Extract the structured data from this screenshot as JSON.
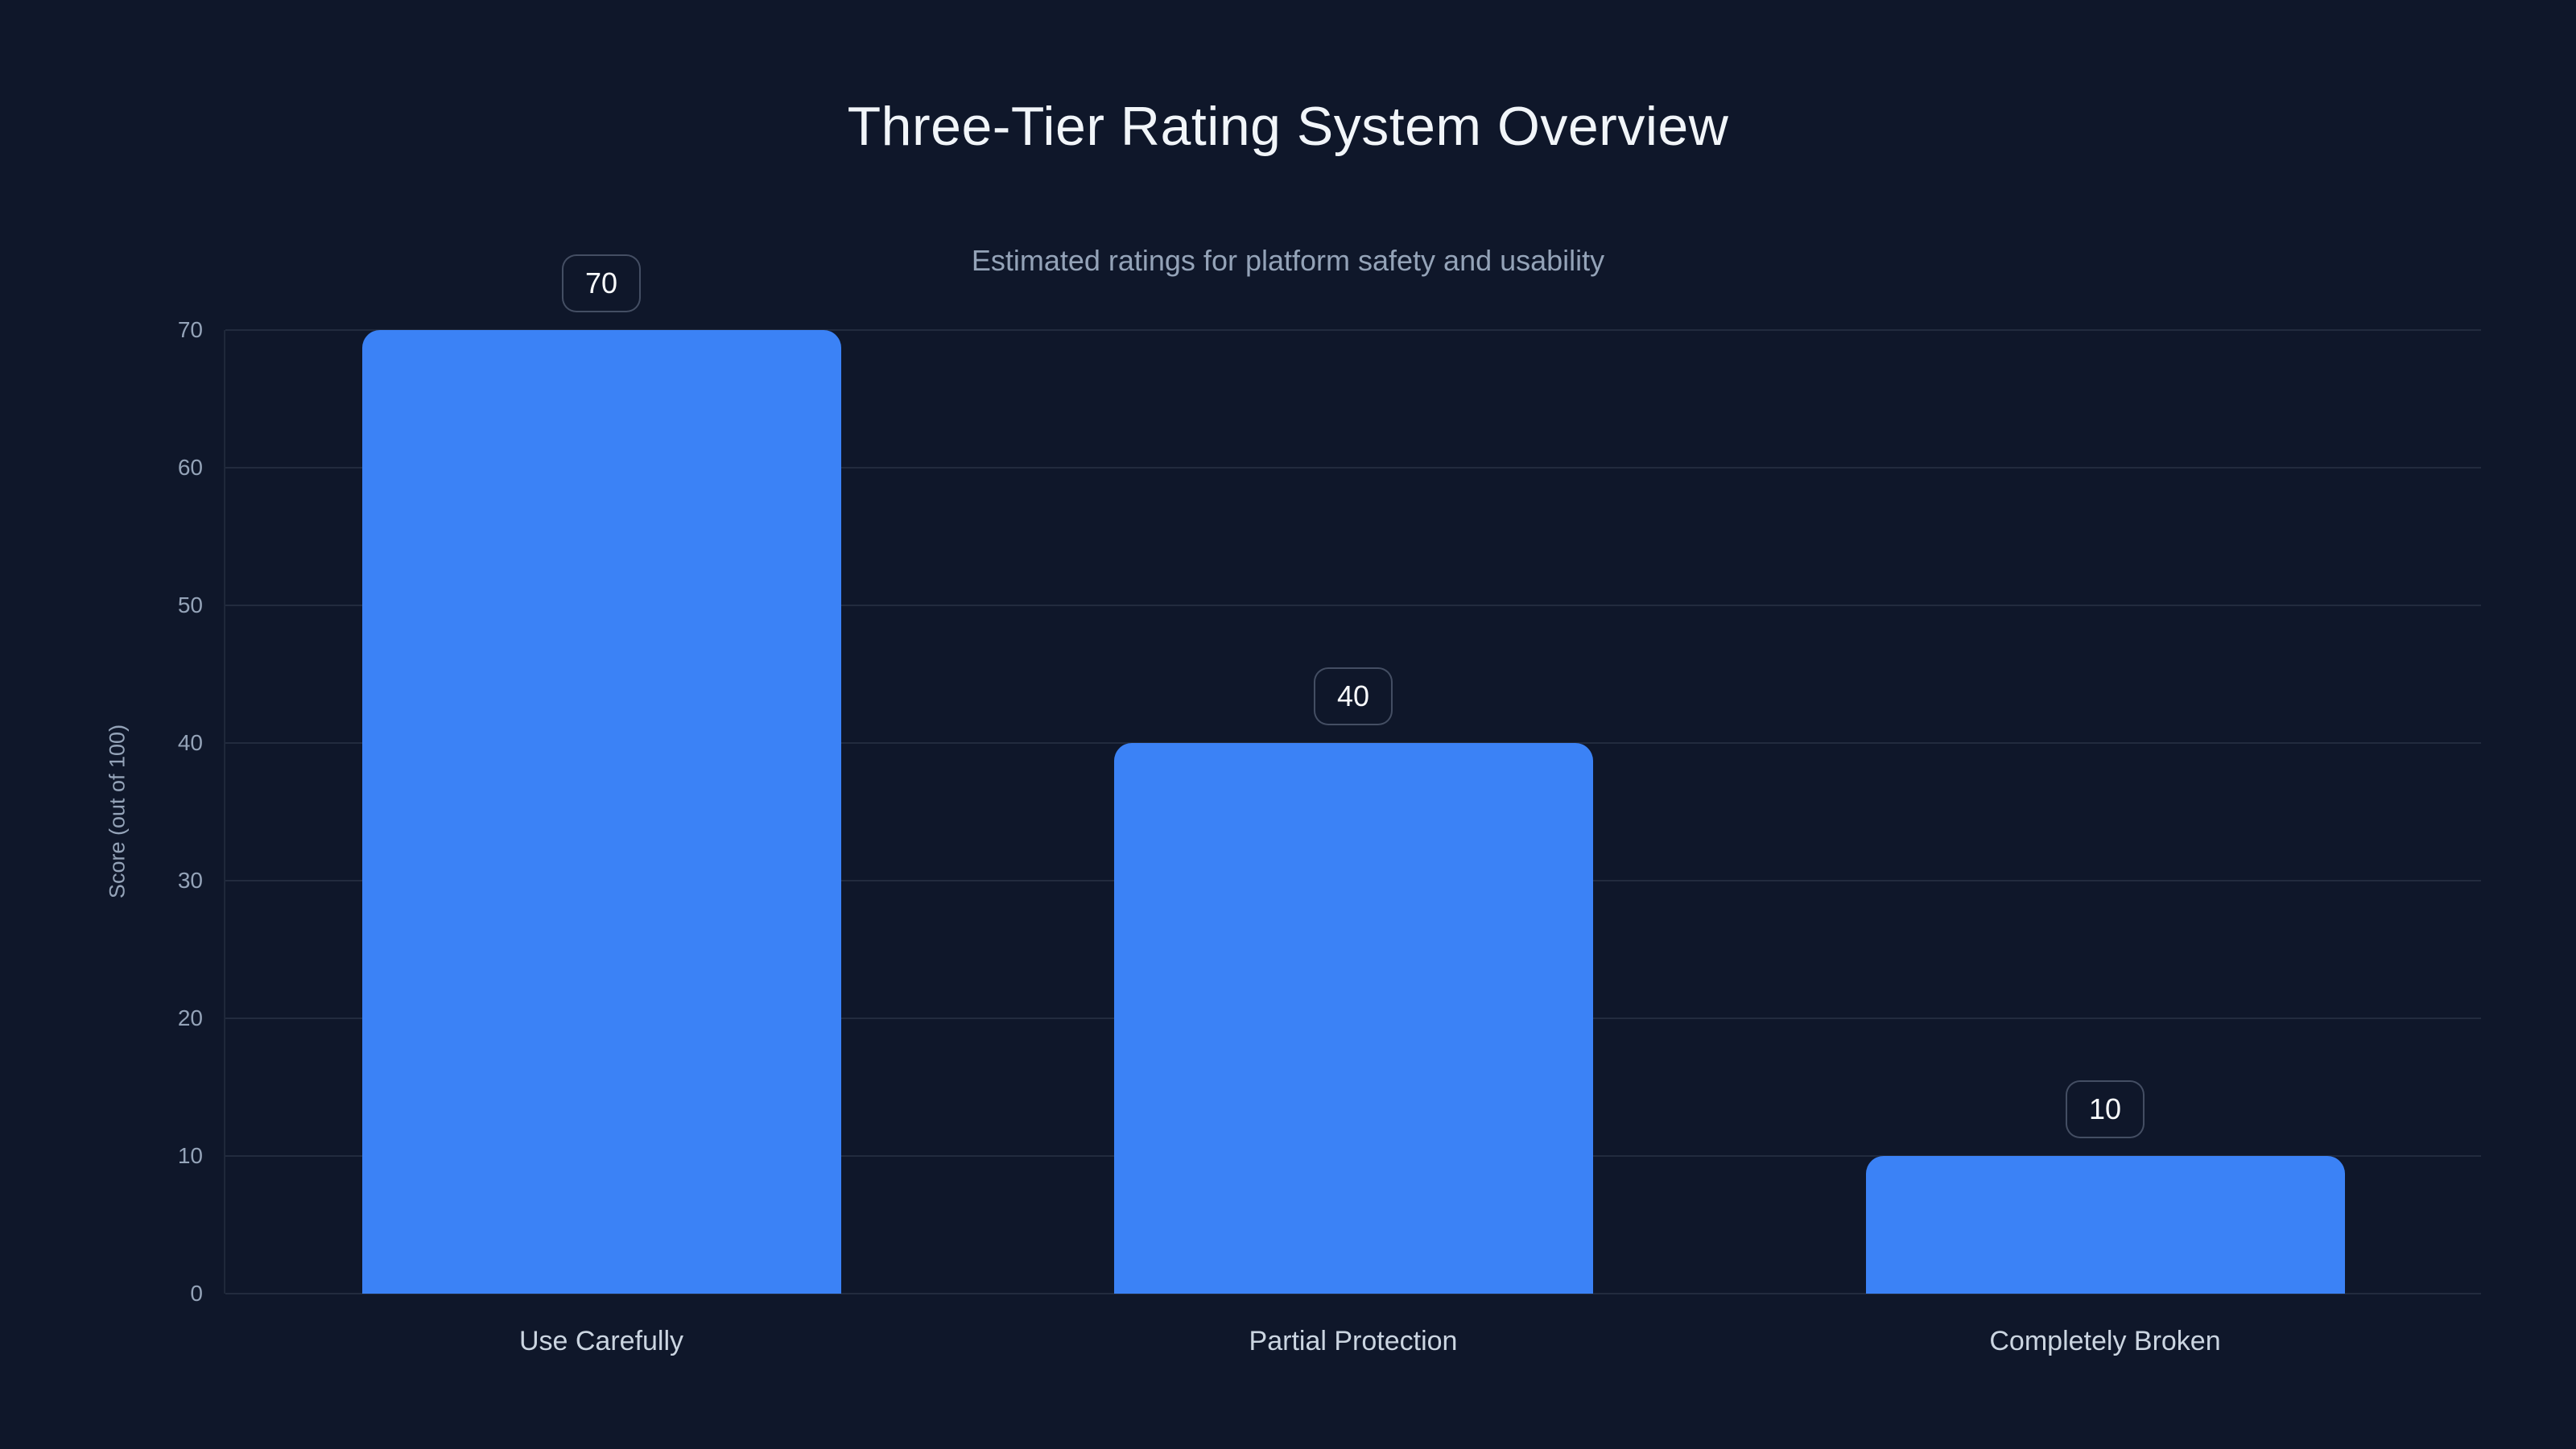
{
  "chart_data": {
    "type": "bar",
    "title": "Three-Tier Rating System Overview",
    "subtitle": "Estimated ratings for platform safety and usability",
    "categories": [
      "Use Carefully",
      "Partial Protection",
      "Completely Broken"
    ],
    "values": [
      70,
      40,
      10
    ],
    "value_labels": [
      "70",
      "40",
      "10"
    ],
    "xlabel": "",
    "ylabel": "Score (out of 100)",
    "ylim": [
      0,
      70
    ],
    "yticks": [
      0,
      10,
      20,
      30,
      40,
      50,
      60,
      70
    ],
    "grid": true,
    "legend": "none",
    "colors": {
      "background": "#0f172a",
      "bar": "#3b82f6",
      "gridline": "rgba(148,163,184,0.15)",
      "axis_line": "rgba(148,163,184,0.12)",
      "title_text": "#f1f5f9",
      "subtitle_text": "#94a3b8",
      "tick_text": "#94a3b8",
      "category_text": "#cbd5e1",
      "badge_text": "#f8fafc",
      "badge_border": "rgba(148,163,184,0.4)"
    }
  }
}
